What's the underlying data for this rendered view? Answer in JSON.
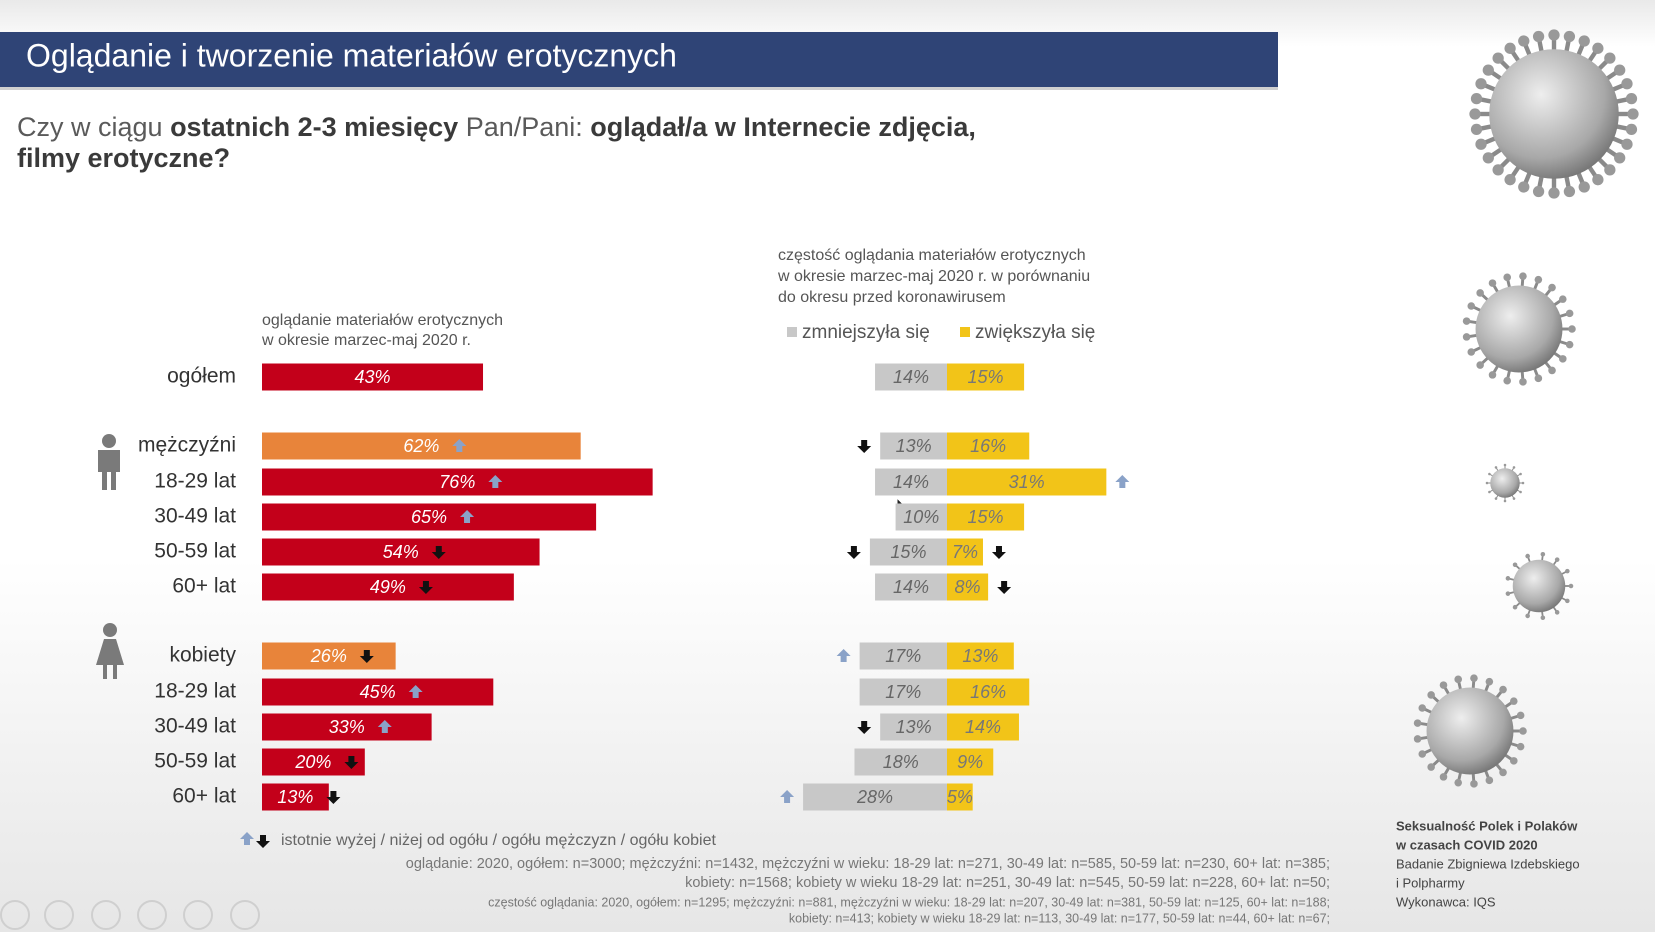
{
  "header": {
    "title": "Oglądanie i tworzenie materiałów erotycznych"
  },
  "question": {
    "lines": [
      [
        {
          "text": "Czy w ciągu ",
          "bold": false
        },
        {
          "text": "ostatnich 2-3 miesięcy",
          "bold": true
        },
        {
          "text": " Pan/Pani: ",
          "bold": false
        },
        {
          "text": "oglądał/a w Internecie zdjęcia,",
          "bold": true
        }
      ],
      [
        {
          "text": "filmy erotyczne?",
          "bold": true
        }
      ]
    ]
  },
  "chart_data": [
    {
      "type": "bar",
      "subtitle_lines": [
        "oglądanie materiałów erotycznych",
        "w okresie marzec-maj 2020 r."
      ],
      "categories": [
        "ogółem",
        "mężczyźni",
        "18-29 lat",
        "30-49 lat",
        "50-59 lat",
        "60+ lat",
        "kobiety",
        "18-29 lat",
        "30-49 lat",
        "50-59 lat",
        "60+ lat"
      ],
      "values": [
        43,
        62,
        76,
        65,
        54,
        49,
        26,
        45,
        33,
        20,
        13
      ],
      "value_labels": [
        "43%",
        "62%",
        "76%",
        "65%",
        "54%",
        "49%",
        "26%",
        "45%",
        "33%",
        "20%",
        "13%"
      ],
      "colors": [
        "#c3001a",
        "#e8843a",
        "#c3001a",
        "#c3001a",
        "#c3001a",
        "#c3001a",
        "#e8843a",
        "#c3001a",
        "#c3001a",
        "#c3001a",
        "#c3001a"
      ],
      "markers": [
        null,
        "up",
        "up",
        "up",
        "down",
        "down",
        "down",
        "up",
        "up",
        "down",
        "down"
      ]
    },
    {
      "type": "diverging_bar",
      "subtitle_lines": [
        "częstość oglądania materiałów erotycznych",
        "w okresie marzec-maj 2020 r. w porównaniu",
        "do okresu przed koronawirusem"
      ],
      "series": [
        {
          "name": "zmniejszyła się",
          "color": "#c8c8c8",
          "values": [
            14,
            13,
            14,
            10,
            15,
            14,
            17,
            17,
            13,
            18,
            28
          ],
          "value_labels": [
            "14%",
            "13%",
            "14%",
            "10%",
            "15%",
            "14%",
            "17%",
            "17%",
            "13%",
            "18%",
            "28%"
          ],
          "markers": [
            null,
            "down",
            null,
            null,
            "down",
            null,
            "up",
            null,
            "down",
            null,
            "up"
          ]
        },
        {
          "name": "zwiększyła się",
          "color": "#f2c418",
          "values": [
            15,
            16,
            31,
            15,
            7,
            8,
            13,
            16,
            14,
            9,
            5
          ],
          "value_labels": [
            "15%",
            "16%",
            "31%",
            "15%",
            "7%",
            "8%",
            "13%",
            "16%",
            "14%",
            "9%",
            "5%"
          ],
          "markers": [
            null,
            null,
            "up",
            null,
            "down",
            "down",
            null,
            null,
            null,
            null,
            null
          ]
        }
      ]
    }
  ],
  "footnote": {
    "marker_note": "istotnie wyżej / niżej od ogółu / ogółu mężczyzn / ogółu kobiet",
    "sample_lines": [
      "oglądanie: 2020, ogółem: n=3000; mężczyźni: n=1432, mężczyźni w wieku: 18-29 lat: n=271, 30-49 lat: n=585, 50-59 lat: n=230, 60+ lat: n=385;",
      "kobiety: n=1568; kobiety w wieku 18-29 lat: n=251, 30-49 lat: n=545, 50-59 lat: n=228, 60+ lat: n=50;",
      "częstość oglądania: 2020, ogółem: n=1295; mężczyźni: n=881, mężczyźni w wieku: 18-29 lat: n=207, 30-49 lat: n=381, 50-59 lat: n=125, 60+ lat: n=188;",
      "kobiety: n=413; kobiety w wieku 18-29 lat: n=113, 30-49 lat: n=177, 50-59 lat: n=44, 60+ lat: n=67;"
    ]
  },
  "credits": {
    "lines": [
      "Seksualność Polek i Polaków",
      "w czasach COVID 2020",
      "Badanie Zbigniewa Izdebskiego",
      "i Polpharmy",
      "Wykonawca: IQS"
    ]
  }
}
